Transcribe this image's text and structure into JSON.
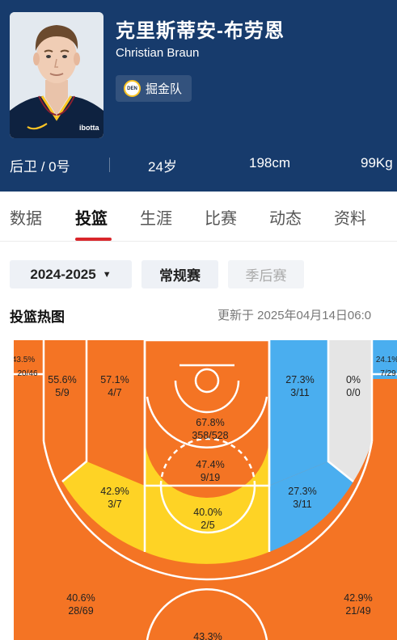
{
  "player": {
    "name_cn": "克里斯蒂安-布劳恩",
    "name_en": "Christian Braun",
    "team": "掘金队",
    "team_logo_text": "DEN",
    "jersey_text": "ibotta",
    "position_number": "后卫 / 0号",
    "age": "24岁",
    "height": "198cm",
    "weight": "99Kg"
  },
  "tabs": [
    {
      "label": "数据",
      "active": false
    },
    {
      "label": "投篮",
      "active": true
    },
    {
      "label": "生涯",
      "active": false
    },
    {
      "label": "比赛",
      "active": false
    },
    {
      "label": "动态",
      "active": false
    },
    {
      "label": "资料",
      "active": false
    }
  ],
  "filters": {
    "season": "2024-2025",
    "regular": "常规赛",
    "playoff": "季后赛"
  },
  "heatmap": {
    "title": "投篮热图",
    "updated": "更新于 2025年04月14日06:0",
    "colors": {
      "hot": "#f47424",
      "avg": "#fed325",
      "cold": "#4aaeef",
      "cool": "#a9d0f5",
      "empty": "#e5e5e5",
      "line": "#ffffff"
    },
    "zones": {
      "left_corner_three": {
        "pct": "43.5%",
        "made_att": "20/46"
      },
      "left_baseline_long_two": {
        "pct": "55.6%",
        "made_att": "5/9"
      },
      "left_short_baseline": {
        "pct": "57.1%",
        "made_att": "4/7"
      },
      "restricted_area": {
        "pct": "67.8%",
        "made_att": "358/528"
      },
      "right_short_baseline": {
        "pct": "27.3%",
        "made_att": "3/11"
      },
      "right_baseline_long_two": {
        "pct": "0%",
        "made_att": "0/0"
      },
      "right_corner_three": {
        "pct": "24.1%",
        "made_att": "7/29"
      },
      "paint": {
        "pct": "47.4%",
        "made_att": "9/19"
      },
      "left_wing_long_two": {
        "pct": "42.9%",
        "made_att": "3/7"
      },
      "right_wing_long_two": {
        "pct": "27.3%",
        "made_att": "3/11"
      },
      "top_long_two": {
        "pct": "40.0%",
        "made_att": "2/5"
      },
      "left_wing_three": {
        "pct": "40.6%",
        "made_att": "28/69"
      },
      "right_wing_three": {
        "pct": "42.9%",
        "made_att": "21/49"
      },
      "top_three": {
        "pct": "43.3%",
        "made_att": ""
      }
    }
  }
}
